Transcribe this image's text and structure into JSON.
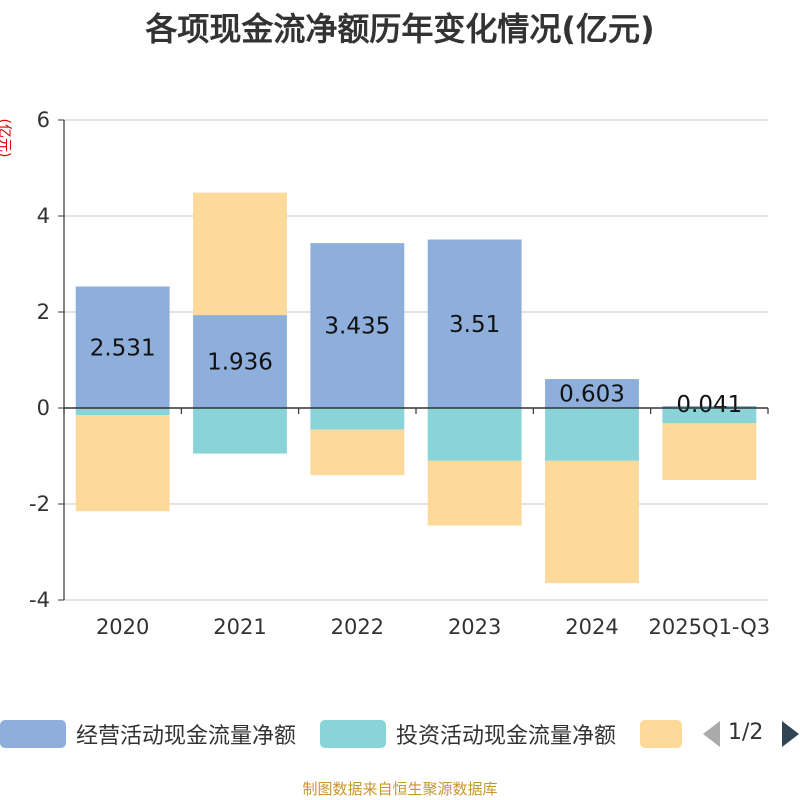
{
  "chart_data": {
    "type": "bar",
    "stacked": true,
    "title": "各项现金流净额历年变化情况(亿元)",
    "ylabel": "(亿元)",
    "categories": [
      "2020",
      "2021",
      "2022",
      "2023",
      "2024",
      "2025Q1-Q3"
    ],
    "ylim": [
      -4,
      6
    ],
    "yticks": [
      -4,
      -2,
      0,
      2,
      4,
      6
    ],
    "grid": true,
    "legend_position": "bottom",
    "series": [
      {
        "name": "经营活动现金流量净额",
        "color": "#8eaedb",
        "values": [
          2.531,
          1.936,
          3.435,
          3.51,
          0.603,
          0.041
        ]
      },
      {
        "name": "投资活动现金流量净额",
        "color": "#88d4d8",
        "values": [
          -0.15,
          -0.95,
          -0.45,
          -1.1,
          -1.1,
          -0.32
        ]
      },
      {
        "name": "",
        "color": "#fdd99a",
        "values": [
          -2.0,
          2.55,
          -0.95,
          -1.35,
          -2.55,
          -1.18
        ]
      }
    ],
    "data_labels": [
      "2.531",
      "1.936",
      "3.435",
      "3.51",
      "0.603",
      "0.041"
    ]
  },
  "legend": {
    "items": [
      "经营活动现金流量净额",
      "投资活动现金流量净额",
      ""
    ],
    "page": "1/2"
  },
  "source": "制图数据来自恒生聚源数据库"
}
